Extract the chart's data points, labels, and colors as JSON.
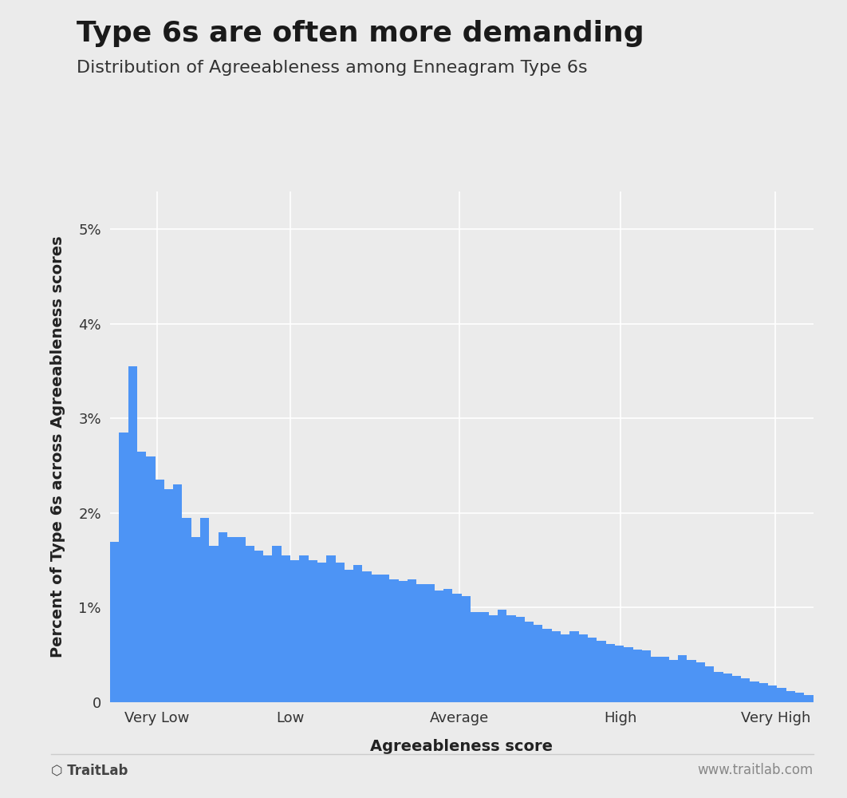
{
  "title": "Type 6s are often more demanding",
  "subtitle": "Distribution of Agreeableness among Enneagram Type 6s",
  "ylabel": "Percent of Type 6s across Agreeableness scores",
  "xlabel": "Agreeableness score",
  "bar_color": "#4d94f5",
  "background_color": "#ebebeb",
  "axes_background": "#ebebeb",
  "ylim": [
    0,
    0.054
  ],
  "yticks": [
    0,
    0.01,
    0.02,
    0.03,
    0.04,
    0.05
  ],
  "ytick_labels": [
    "0",
    "1%",
    "2%",
    "3%",
    "4%",
    "5%"
  ],
  "xtick_labels": [
    "Very Low",
    "Low",
    "Average",
    "High",
    "Very High"
  ],
  "bar_values": [
    0.017,
    0.0285,
    0.0355,
    0.0265,
    0.026,
    0.0235,
    0.0225,
    0.023,
    0.0195,
    0.0175,
    0.0195,
    0.0165,
    0.018,
    0.0175,
    0.0175,
    0.0165,
    0.016,
    0.0155,
    0.0165,
    0.0155,
    0.015,
    0.0155,
    0.015,
    0.0148,
    0.0155,
    0.0148,
    0.014,
    0.0145,
    0.0138,
    0.0135,
    0.0135,
    0.013,
    0.0128,
    0.013,
    0.0125,
    0.0125,
    0.0118,
    0.012,
    0.0115,
    0.0112,
    0.0095,
    0.0095,
    0.0092,
    0.0098,
    0.0092,
    0.009,
    0.0085,
    0.0082,
    0.0078,
    0.0075,
    0.0072,
    0.0075,
    0.0072,
    0.0068,
    0.0065,
    0.0062,
    0.006,
    0.0058,
    0.0056,
    0.0055,
    0.0048,
    0.0048,
    0.0045,
    0.005,
    0.0045,
    0.0042,
    0.0038,
    0.0032,
    0.003,
    0.0028,
    0.0025,
    0.0022,
    0.002,
    0.0018,
    0.0015,
    0.0012,
    0.001,
    0.0008
  ],
  "footer_left": "⬡ TraitLab",
  "footer_right": "www.traitlab.com",
  "title_fontsize": 26,
  "subtitle_fontsize": 16,
  "label_fontsize": 14,
  "tick_fontsize": 13,
  "footer_fontsize": 12
}
